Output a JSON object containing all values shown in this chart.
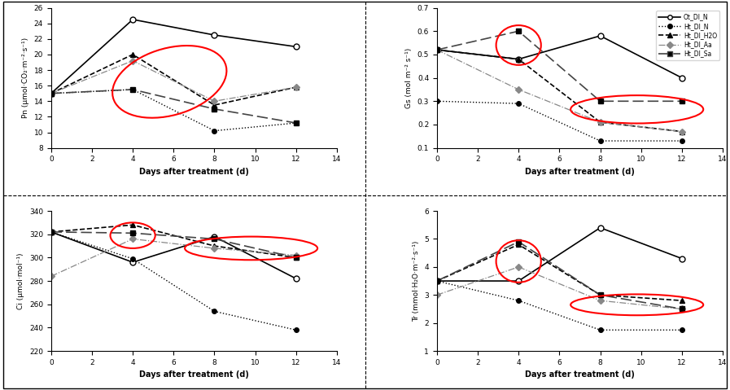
{
  "days": [
    0,
    4,
    8,
    12
  ],
  "pn": {
    "Ot_DI_N": [
      15.0,
      24.5,
      22.5,
      21.0
    ],
    "Ht_DI_N": [
      15.0,
      15.5,
      10.2,
      11.2
    ],
    "Ht_DI_H2O": [
      15.0,
      20.0,
      13.5,
      15.8
    ],
    "Ht_DI_Aa": [
      15.0,
      19.2,
      14.0,
      15.8
    ],
    "Ht_DI_Sa": [
      15.0,
      15.5,
      13.0,
      11.2
    ]
  },
  "gs": {
    "Ot_DI_N": [
      0.52,
      0.48,
      0.58,
      0.4
    ],
    "Ht_DI_N": [
      0.3,
      0.29,
      0.13,
      0.13
    ],
    "Ht_DI_H2O": [
      0.52,
      0.48,
      0.21,
      0.17
    ],
    "Ht_DI_Aa": [
      0.52,
      0.35,
      0.21,
      0.17
    ],
    "Ht_DI_Sa": [
      0.52,
      0.6,
      0.3,
      0.3
    ]
  },
  "ci": {
    "Ot_DI_N": [
      322,
      296,
      318,
      282
    ],
    "Ht_DI_N": [
      322,
      299,
      254,
      238
    ],
    "Ht_DI_H2O": [
      322,
      328,
      310,
      300
    ],
    "Ht_DI_Aa": [
      284,
      316,
      308,
      302
    ],
    "Ht_DI_Sa": [
      322,
      321,
      316,
      300
    ]
  },
  "tr": {
    "Ot_DI_N": [
      3.5,
      3.5,
      5.4,
      4.3
    ],
    "Ht_DI_N": [
      3.5,
      2.8,
      1.75,
      1.75
    ],
    "Ht_DI_H2O": [
      3.5,
      4.8,
      3.0,
      2.8
    ],
    "Ht_DI_Aa": [
      3.0,
      4.0,
      2.8,
      2.5
    ],
    "Ht_DI_Sa": [
      3.5,
      4.9,
      3.0,
      2.5
    ]
  },
  "legend_labels": [
    "Ot_DI_N",
    "Ht_DI_N",
    "Ht_DI_H2O",
    "Ht_DI_Aa",
    "Ht_DI_Sa"
  ],
  "pn_ylabel": "Pn (μmol·CO₂·m⁻²·s⁻¹)",
  "gs_ylabel": "Gs (mol m⁻² s⁻¹)",
  "ci_ylabel": "Ci (μmol·mol⁻¹)",
  "tr_ylabel": "Tr (mmol·H₂O·m⁻²·s⁻¹)",
  "xlabel": "Days after treatment (d)",
  "pn_ylim": [
    8,
    26
  ],
  "pn_yticks": [
    8,
    10,
    12,
    14,
    16,
    18,
    20,
    22,
    24,
    26
  ],
  "gs_ylim": [
    0.1,
    0.7
  ],
  "gs_yticks": [
    0.1,
    0.2,
    0.3,
    0.4,
    0.5,
    0.6,
    0.7
  ],
  "ci_ylim": [
    220,
    340
  ],
  "ci_yticks": [
    220,
    240,
    260,
    280,
    300,
    320,
    340
  ],
  "tr_ylim": [
    1.0,
    6.0
  ],
  "tr_yticks": [
    1,
    2,
    3,
    4,
    5,
    6
  ],
  "xticks": [
    0,
    2,
    4,
    6,
    8,
    10,
    12,
    14
  ]
}
